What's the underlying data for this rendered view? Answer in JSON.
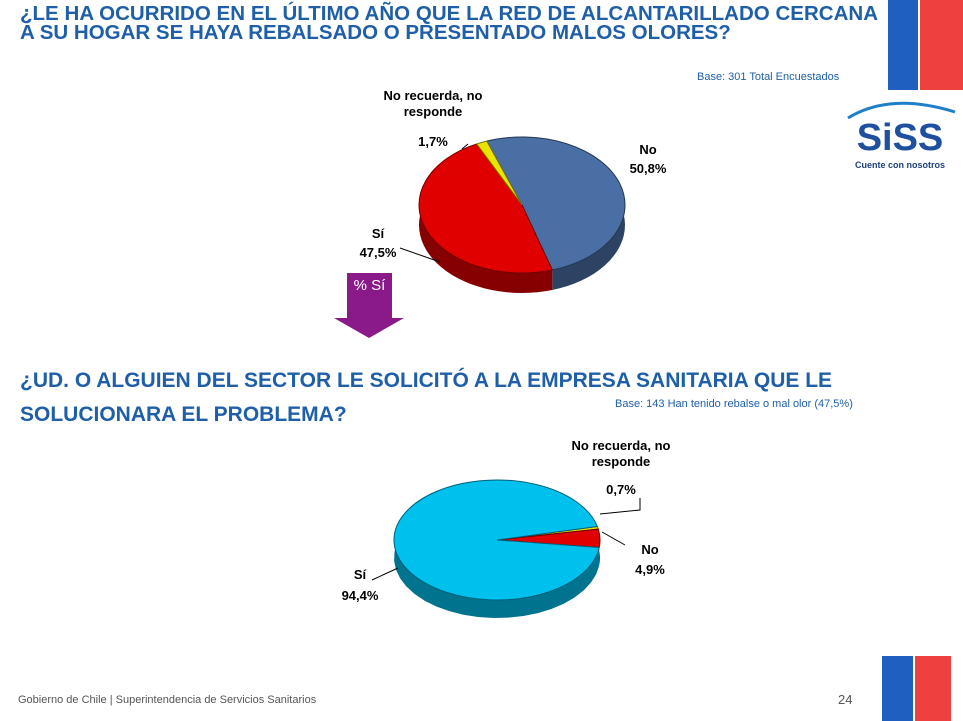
{
  "chart_data": [
    {
      "type": "pie",
      "title": "¿LE HA OCURRIDO EN EL ÚLTIMO AÑO QUE LA RED DE ALCANTARILLADO CERCANA A SU HOGAR SE HAYA REBALSADO O PRESENTADO MALOS OLORES?",
      "subtitle": "Base: 301 Total Encuestados",
      "categories": [
        "No",
        "Sí",
        "No recuerda, no responde"
      ],
      "values": [
        50.8,
        47.5,
        1.7
      ],
      "value_labels": [
        "50,8%",
        "47,5%",
        "1,7%"
      ],
      "colors": [
        "#4a6fa5",
        "#e00000",
        "#e8e400"
      ]
    },
    {
      "type": "pie",
      "title": "¿UD. O ALGUIEN DEL SECTOR LE SOLICITÓ A LA EMPRESA SANITARIA QUE LE SOLUCIONARA EL PROBLEMA?",
      "subtitle": "Base: 143 Han tenido rebalse o mal olor  (47,5%)",
      "categories": [
        "No recuerda, no responde",
        "No",
        "Sí"
      ],
      "values": [
        0.7,
        4.9,
        94.4
      ],
      "value_labels": [
        "0,7%",
        "4,9%",
        "94,4%"
      ],
      "colors": [
        "#e8e400",
        "#e00000",
        "#00c0ee"
      ]
    }
  ],
  "arrow_label": "% Sí",
  "logo": {
    "name": "SiSS",
    "slogan": "Cuente con nosotros"
  },
  "footer": "Gobierno de Chile | Superintendencia de Servicios Sanitarios",
  "page_number": "24"
}
